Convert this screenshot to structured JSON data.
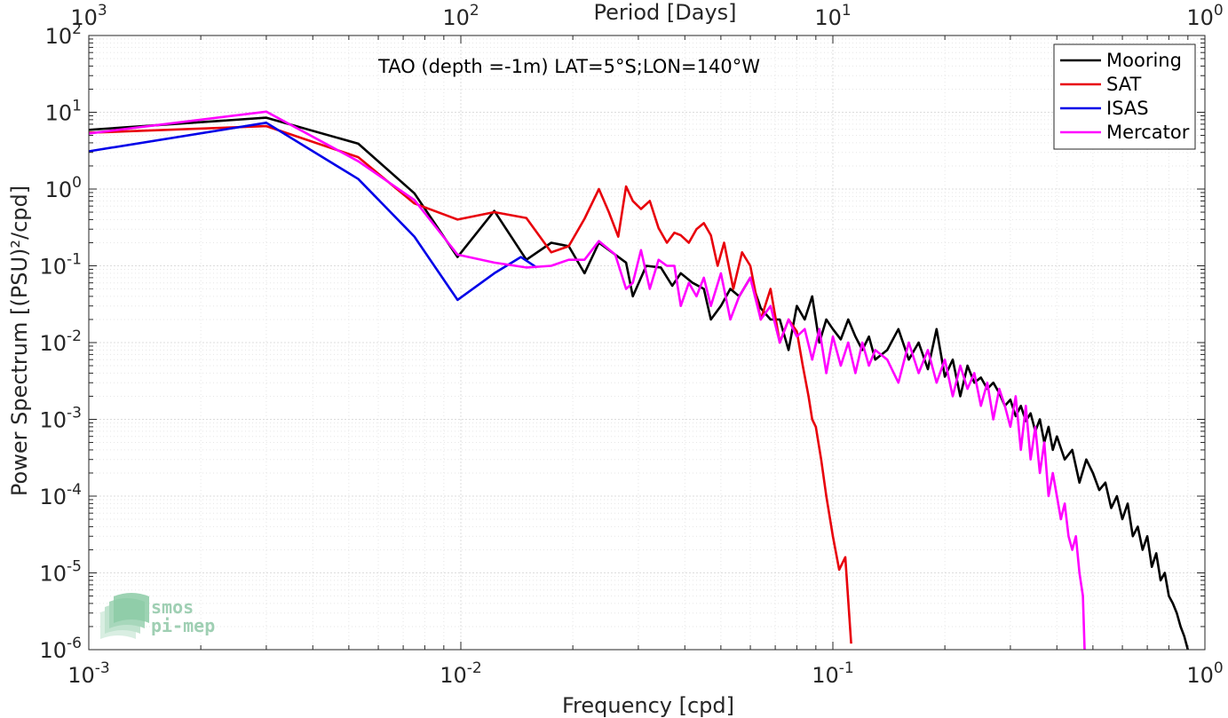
{
  "chart_data": {
    "type": "line",
    "title": "TAO (depth =-1m) LAT=5°S;LON=140°W",
    "xlabel": "Frequency [cpd]",
    "ylabel": "Power Spectrum [(PSU)²/cpd]",
    "top_axis_label": "Period [Days]",
    "x_scale": "log",
    "y_scale": "log",
    "xlim": [
      0.001,
      1
    ],
    "ylim": [
      1e-06,
      100
    ],
    "x_tick_labels": [
      {
        "base": "10",
        "exp": "-3"
      },
      {
        "base": "10",
        "exp": "-2"
      },
      {
        "base": "10",
        "exp": "-1"
      },
      {
        "base": "10",
        "exp": "0"
      }
    ],
    "top_tick_labels": [
      {
        "base": "10",
        "exp": "3"
      },
      {
        "base": "10",
        "exp": "2"
      },
      {
        "base": "10",
        "exp": "1"
      },
      {
        "base": "10",
        "exp": "0"
      }
    ],
    "y_tick_labels": [
      {
        "base": "10",
        "exp": "-6"
      },
      {
        "base": "10",
        "exp": "-5"
      },
      {
        "base": "10",
        "exp": "-4"
      },
      {
        "base": "10",
        "exp": "-3"
      },
      {
        "base": "10",
        "exp": "-2"
      },
      {
        "base": "10",
        "exp": "-1"
      },
      {
        "base": "10",
        "exp": "0"
      },
      {
        "base": "10",
        "exp": "1"
      },
      {
        "base": "10",
        "exp": "2"
      }
    ],
    "grid": true,
    "legend_position": "top-right",
    "series": [
      {
        "name": "Mooring",
        "color": "#000000",
        "x": [
          0.001,
          0.003,
          0.0053,
          0.0075,
          0.0098,
          0.0123,
          0.015,
          0.0175,
          0.0195,
          0.0215,
          0.0235,
          0.026,
          0.0278,
          0.029,
          0.0315,
          0.0345,
          0.037,
          0.039,
          0.042,
          0.045,
          0.047,
          0.05,
          0.053,
          0.056,
          0.06,
          0.064,
          0.068,
          0.072,
          0.076,
          0.08,
          0.084,
          0.088,
          0.092,
          0.096,
          0.1,
          0.105,
          0.11,
          0.115,
          0.12,
          0.125,
          0.13,
          0.14,
          0.15,
          0.16,
          0.17,
          0.18,
          0.19,
          0.2,
          0.21,
          0.22,
          0.23,
          0.24,
          0.25,
          0.26,
          0.27,
          0.28,
          0.29,
          0.3,
          0.31,
          0.32,
          0.33,
          0.34,
          0.35,
          0.36,
          0.37,
          0.38,
          0.39,
          0.4,
          0.42,
          0.44,
          0.46,
          0.48,
          0.5,
          0.52,
          0.54,
          0.56,
          0.58,
          0.6,
          0.62,
          0.64,
          0.66,
          0.68,
          0.7,
          0.72,
          0.74,
          0.76,
          0.78,
          0.8,
          0.82,
          0.84,
          0.86,
          0.88,
          0.9
        ],
        "y": [
          5.9,
          8.5,
          3.9,
          0.88,
          0.13,
          0.52,
          0.12,
          0.2,
          0.18,
          0.08,
          0.2,
          0.14,
          0.11,
          0.04,
          0.1,
          0.095,
          0.055,
          0.08,
          0.06,
          0.05,
          0.02,
          0.03,
          0.05,
          0.04,
          0.07,
          0.028,
          0.02,
          0.02,
          0.008,
          0.03,
          0.02,
          0.04,
          0.01,
          0.02,
          0.015,
          0.011,
          0.02,
          0.012,
          0.008,
          0.012,
          0.006,
          0.008,
          0.015,
          0.006,
          0.01,
          0.0045,
          0.015,
          0.0036,
          0.006,
          0.002,
          0.005,
          0.003,
          0.0035,
          0.0025,
          0.003,
          0.0022,
          0.0015,
          0.0018,
          0.0011,
          0.0015,
          0.00095,
          0.0012,
          0.0007,
          0.001,
          0.0005,
          0.0008,
          0.0004,
          0.0006,
          0.0003,
          0.0004,
          0.00015,
          0.0003,
          0.0002,
          0.00012,
          0.00015,
          7e-05,
          0.0001,
          5e-05,
          8e-05,
          3e-05,
          4e-05,
          2e-05,
          3e-05,
          1.2e-05,
          1.8e-05,
          8e-06,
          1e-05,
          5e-06,
          4e-06,
          3e-06,
          2e-06,
          1.5e-06,
          1e-06
        ]
      },
      {
        "name": "SAT",
        "color": "#e8000b",
        "x": [
          0.001,
          0.003,
          0.0053,
          0.0075,
          0.0098,
          0.0123,
          0.015,
          0.0175,
          0.0195,
          0.0215,
          0.0235,
          0.025,
          0.0265,
          0.0278,
          0.029,
          0.0305,
          0.0322,
          0.034,
          0.0358,
          0.0375,
          0.039,
          0.041,
          0.043,
          0.045,
          0.047,
          0.049,
          0.051,
          0.054,
          0.057,
          0.06,
          0.064,
          0.068,
          0.072,
          0.076,
          0.08,
          0.083,
          0.086,
          0.088,
          0.09,
          0.093,
          0.096,
          0.1,
          0.104,
          0.108,
          0.112
        ],
        "y": [
          5.4,
          6.6,
          2.6,
          0.65,
          0.4,
          0.5,
          0.42,
          0.15,
          0.18,
          0.41,
          1.0,
          0.5,
          0.24,
          1.08,
          0.7,
          0.55,
          0.7,
          0.31,
          0.2,
          0.27,
          0.25,
          0.2,
          0.3,
          0.36,
          0.25,
          0.1,
          0.2,
          0.05,
          0.15,
          0.1,
          0.02,
          0.05,
          0.01,
          0.02,
          0.014,
          0.005,
          0.002,
          0.001,
          0.0008,
          0.0003,
          0.0001,
          3e-05,
          1.1e-05,
          1.6e-05,
          1.2e-06
        ]
      },
      {
        "name": "ISAS",
        "color": "#0000e8",
        "x": [
          0.001,
          0.003,
          0.0053,
          0.0075,
          0.0098,
          0.0123,
          0.0145,
          0.016
        ],
        "y": [
          3.1,
          7.3,
          1.35,
          0.24,
          0.036,
          0.08,
          0.13,
          0.095
        ]
      },
      {
        "name": "Mercator",
        "color": "#ff00ff",
        "x": [
          0.001,
          0.003,
          0.0053,
          0.0075,
          0.0098,
          0.0123,
          0.015,
          0.0175,
          0.0195,
          0.0215,
          0.0235,
          0.026,
          0.0278,
          0.029,
          0.0305,
          0.0322,
          0.034,
          0.0358,
          0.0375,
          0.039,
          0.041,
          0.043,
          0.045,
          0.047,
          0.05,
          0.053,
          0.056,
          0.06,
          0.064,
          0.068,
          0.072,
          0.076,
          0.08,
          0.084,
          0.088,
          0.092,
          0.096,
          0.1,
          0.105,
          0.11,
          0.115,
          0.12,
          0.125,
          0.13,
          0.14,
          0.15,
          0.16,
          0.17,
          0.18,
          0.19,
          0.2,
          0.21,
          0.22,
          0.23,
          0.24,
          0.25,
          0.26,
          0.27,
          0.28,
          0.29,
          0.3,
          0.31,
          0.32,
          0.33,
          0.34,
          0.35,
          0.36,
          0.37,
          0.38,
          0.39,
          0.4,
          0.41,
          0.42,
          0.43,
          0.44,
          0.45,
          0.46,
          0.47,
          0.475
        ],
        "y": [
          5.3,
          10.2,
          2.3,
          0.72,
          0.14,
          0.11,
          0.095,
          0.1,
          0.12,
          0.12,
          0.21,
          0.14,
          0.05,
          0.06,
          0.16,
          0.05,
          0.12,
          0.1,
          0.1,
          0.03,
          0.06,
          0.04,
          0.07,
          0.03,
          0.08,
          0.02,
          0.04,
          0.07,
          0.02,
          0.03,
          0.01,
          0.02,
          0.012,
          0.015,
          0.006,
          0.015,
          0.004,
          0.012,
          0.005,
          0.01,
          0.004,
          0.01,
          0.005,
          0.008,
          0.006,
          0.003,
          0.01,
          0.004,
          0.008,
          0.003,
          0.006,
          0.002,
          0.005,
          0.0025,
          0.004,
          0.0015,
          0.003,
          0.001,
          0.0025,
          0.0015,
          0.0008,
          0.002,
          0.0004,
          0.0015,
          0.0003,
          0.0008,
          0.0002,
          0.0005,
          0.0001,
          0.0002,
          0.0001,
          5e-05,
          8e-05,
          3e-05,
          2e-05,
          3e-05,
          1e-05,
          5e-06,
          1e-06
        ]
      }
    ]
  },
  "logo": {
    "line1": "smos",
    "line2": "pi-mep"
  }
}
